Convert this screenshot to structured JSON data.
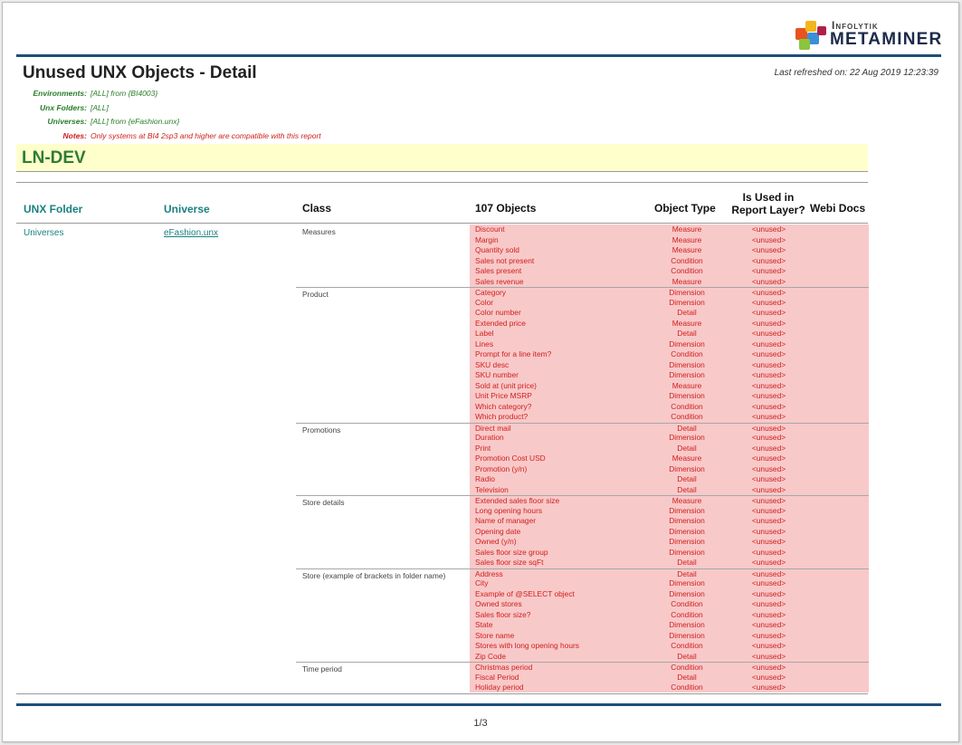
{
  "logo": {
    "top_text": "Infolytik",
    "bottom_text": "METAMINER"
  },
  "report": {
    "title": "Unused UNX Objects - Detail",
    "refreshed": "Last refreshed on: 22 Aug 2019 12:23:39"
  },
  "filters": [
    {
      "label": "Environments:",
      "value": "[ALL] from {BI4003}",
      "color": "#2a7d2a"
    },
    {
      "label": "Unx Folders:",
      "value": "[ALL]",
      "color": "#2a7d2a"
    },
    {
      "label": "Universes:",
      "value": "[ALL] from {eFashion.unx}",
      "color": "#2a7d2a"
    },
    {
      "label": "Notes:",
      "value": "Only systems at BI4 2sp3 and higher are compatible with this report",
      "color": "#d0201e"
    }
  ],
  "environment": "LN-DEV",
  "headers": {
    "folder": "UNX Folder",
    "universe": "Universe",
    "class": "Class",
    "objects": "107 Objects",
    "type": "Object Type",
    "used_line1": "Is Used in",
    "used_line2": "Report Layer?",
    "webi": "Webi Docs"
  },
  "folder": "Universes",
  "universe": "eFashion.unx",
  "classes": [
    {
      "name": "Measures",
      "objects": [
        [
          "Discount",
          "Measure",
          "<unused>"
        ],
        [
          "Margin",
          "Measure",
          "<unused>"
        ],
        [
          "Quantity sold",
          "Measure",
          "<unused>"
        ],
        [
          "Sales not present",
          "Condition",
          "<unused>"
        ],
        [
          "Sales present",
          "Condition",
          "<unused>"
        ],
        [
          "Sales revenue",
          "Measure",
          "<unused>"
        ]
      ]
    },
    {
      "name": "Product",
      "objects": [
        [
          "Category",
          "Dimension",
          "<unused>"
        ],
        [
          "Color",
          "Dimension",
          "<unused>"
        ],
        [
          "Color number",
          "Detail",
          "<unused>"
        ],
        [
          "Extended price",
          "Measure",
          "<unused>"
        ],
        [
          "Label",
          "Detail",
          "<unused>"
        ],
        [
          "Lines",
          "Dimension",
          "<unused>"
        ],
        [
          "Prompt for a line item?",
          "Condition",
          "<unused>"
        ],
        [
          "SKU desc",
          "Dimension",
          "<unused>"
        ],
        [
          "SKU number",
          "Dimension",
          "<unused>"
        ],
        [
          "Sold at (unit price)",
          "Measure",
          "<unused>"
        ],
        [
          "Unit Price MSRP",
          "Dimension",
          "<unused>"
        ],
        [
          "Which category?",
          "Condition",
          "<unused>"
        ],
        [
          "Which product?",
          "Condition",
          "<unused>"
        ]
      ]
    },
    {
      "name": "Promotions",
      "objects": [
        [
          "Direct mail",
          "Detail",
          "<unused>"
        ],
        [
          "Duration",
          "Dimension",
          "<unused>"
        ],
        [
          "Print",
          "Detail",
          "<unused>"
        ],
        [
          "Promotion Cost USD",
          "Measure",
          "<unused>"
        ],
        [
          "Promotion (y/n)",
          "Dimension",
          "<unused>"
        ],
        [
          "Radio",
          "Detail",
          "<unused>"
        ],
        [
          "Television",
          "Detail",
          "<unused>"
        ]
      ]
    },
    {
      "name": "Store details",
      "objects": [
        [
          "Extended sales floor size",
          "Measure",
          "<unused>"
        ],
        [
          "Long opening hours",
          "Dimension",
          "<unused>"
        ],
        [
          "Name of manager",
          "Dimension",
          "<unused>"
        ],
        [
          "Opening date",
          "Dimension",
          "<unused>"
        ],
        [
          "Owned (y/n)",
          "Dimension",
          "<unused>"
        ],
        [
          "Sales floor size group",
          "Dimension",
          "<unused>"
        ],
        [
          "Sales floor size sqFt",
          "Detail",
          "<unused>"
        ]
      ]
    },
    {
      "name": "Store (example of brackets in folder name)",
      "objects": [
        [
          "Address",
          "Detail",
          "<unused>"
        ],
        [
          "City",
          "Dimension",
          "<unused>"
        ],
        [
          "Example of @SELECT object",
          "Dimension",
          "<unused>"
        ],
        [
          "Owned stores",
          "Condition",
          "<unused>"
        ],
        [
          "Sales floor size?",
          "Condition",
          "<unused>"
        ],
        [
          "State",
          "Dimension",
          "<unused>"
        ],
        [
          "Store name",
          "Dimension",
          "<unused>"
        ],
        [
          "Stores with long opening hours",
          "Condition",
          "<unused>"
        ],
        [
          "Zip Code",
          "Detail",
          "<unused>"
        ]
      ]
    },
    {
      "name": "Time period",
      "objects": [
        [
          "Christmas period",
          "Condition",
          "<unused>"
        ],
        [
          "Fiscal Period",
          "Detail",
          "<unused>"
        ],
        [
          "Holiday period",
          "Condition",
          "<unused>"
        ]
      ]
    }
  ],
  "page_number": "1/3"
}
